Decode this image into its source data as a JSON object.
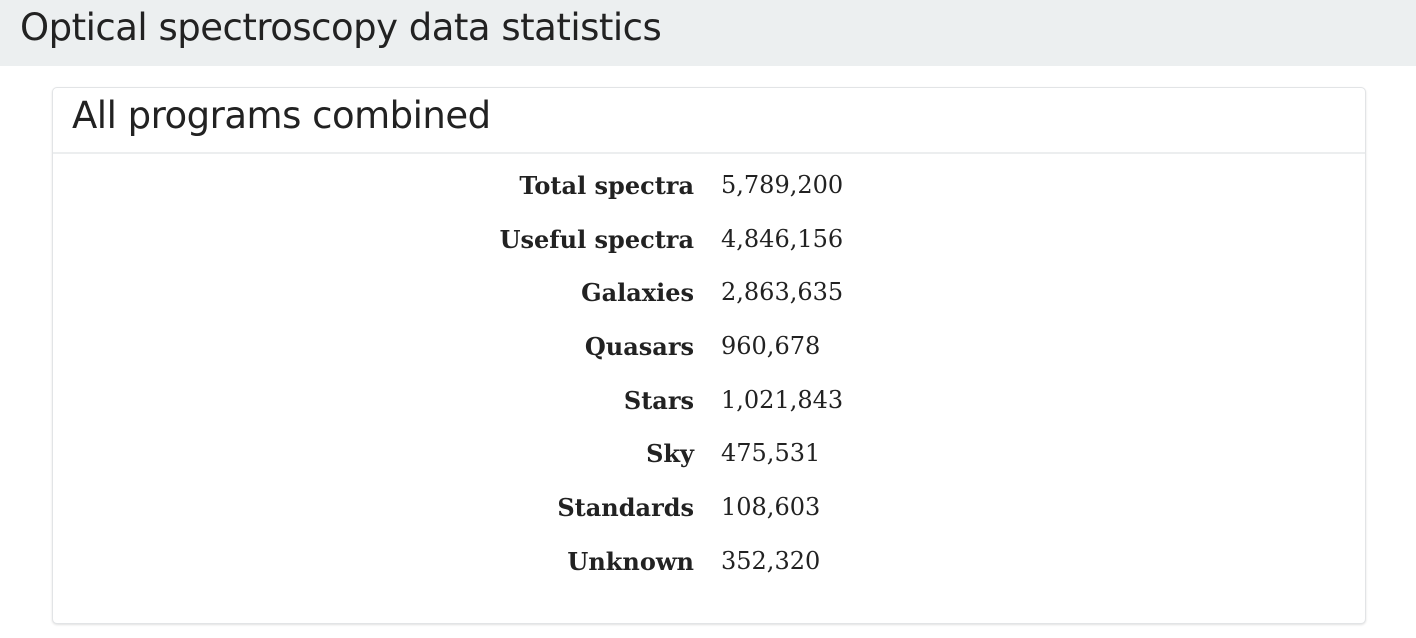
{
  "page": {
    "title": "Optical spectroscopy data statistics"
  },
  "card": {
    "title": "All programs combined",
    "stats": [
      {
        "label": "Total spectra",
        "value": "5,789,200"
      },
      {
        "label": "Useful spectra",
        "value": "4,846,156"
      },
      {
        "label": "Galaxies",
        "value": "2,863,635"
      },
      {
        "label": "Quasars",
        "value": "960,678"
      },
      {
        "label": "Stars",
        "value": "1,021,843"
      },
      {
        "label": "Sky",
        "value": "475,531"
      },
      {
        "label": "Standards",
        "value": "108,603"
      },
      {
        "label": "Unknown",
        "value": "352,320"
      }
    ]
  },
  "colors": {
    "header_background": "#eceff0",
    "text": "#222222",
    "card_border": "#e2e4e6"
  }
}
